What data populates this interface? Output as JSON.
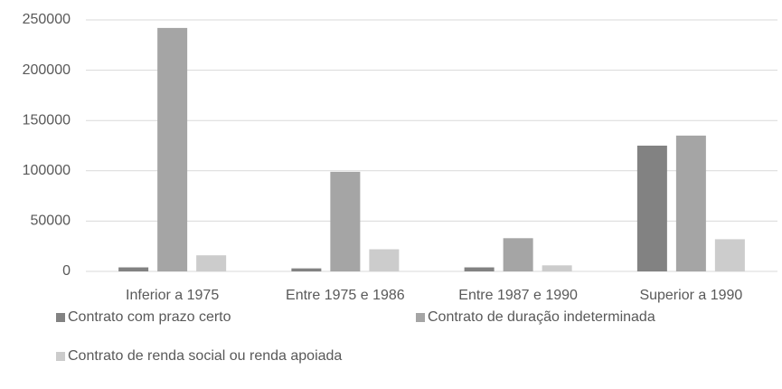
{
  "chart_data": {
    "type": "bar",
    "categories": [
      "Inferior a 1975",
      "Entre 1975 e 1986",
      "Entre 1987 e 1990",
      "Superior a 1990"
    ],
    "series": [
      {
        "name": "Contrato com prazo certo",
        "color": "#828282",
        "values": [
          4000,
          3000,
          4000,
          125000
        ]
      },
      {
        "name": "Contrato de duração indeterminada",
        "color": "#a5a5a5",
        "values": [
          242000,
          99000,
          33000,
          135000
        ]
      },
      {
        "name": "Contrato de renda social ou renda apoiada",
        "color": "#cccccc",
        "values": [
          16000,
          22000,
          6000,
          32000
        ]
      }
    ],
    "ylim": [
      0,
      250000
    ],
    "yticks": [
      0,
      50000,
      100000,
      150000,
      200000,
      250000
    ],
    "grid": true
  }
}
